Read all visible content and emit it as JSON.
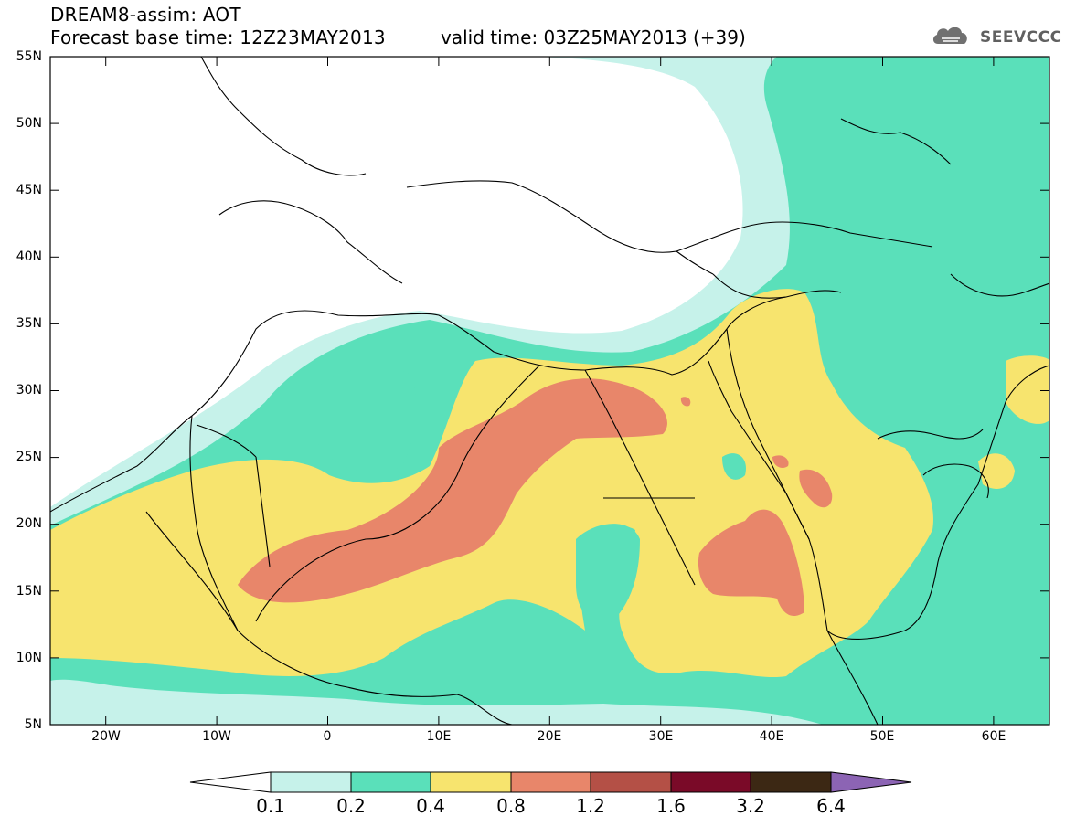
{
  "title": {
    "line1": "DREAM8-assim: AOT",
    "line2": "Forecast base time: 12Z23MAY2013",
    "valid": "valid time: 03Z25MAY2013 (+39)"
  },
  "logo": {
    "text": "SEEVCCC",
    "icon": "cloud-icon"
  },
  "map": {
    "lat_labels": [
      "55N",
      "50N",
      "45N",
      "40N",
      "35N",
      "30N",
      "25N",
      "20N",
      "15N",
      "10N",
      "5N"
    ],
    "lon_labels": [
      "20W",
      "10W",
      "0",
      "10E",
      "20E",
      "30E",
      "40E",
      "50E",
      "60E"
    ],
    "lat_range": [
      5,
      55
    ],
    "lon_range": [
      -25,
      65
    ]
  },
  "colorbar": {
    "labels": [
      "0.1",
      "0.2",
      "0.4",
      "0.8",
      "1.2",
      "1.6",
      "3.2",
      "6.4"
    ],
    "colors": [
      "#ffffff",
      "#c6f2ea",
      "#5ae0ba",
      "#f7e46e",
      "#e8866a",
      "#b45046",
      "#7a0a28",
      "#3c2814",
      "#8c64b4"
    ]
  },
  "colors": {
    "c1": "#c6f2ea",
    "c2": "#5ae0ba",
    "c3": "#f7e46e",
    "c4": "#e8866a"
  }
}
